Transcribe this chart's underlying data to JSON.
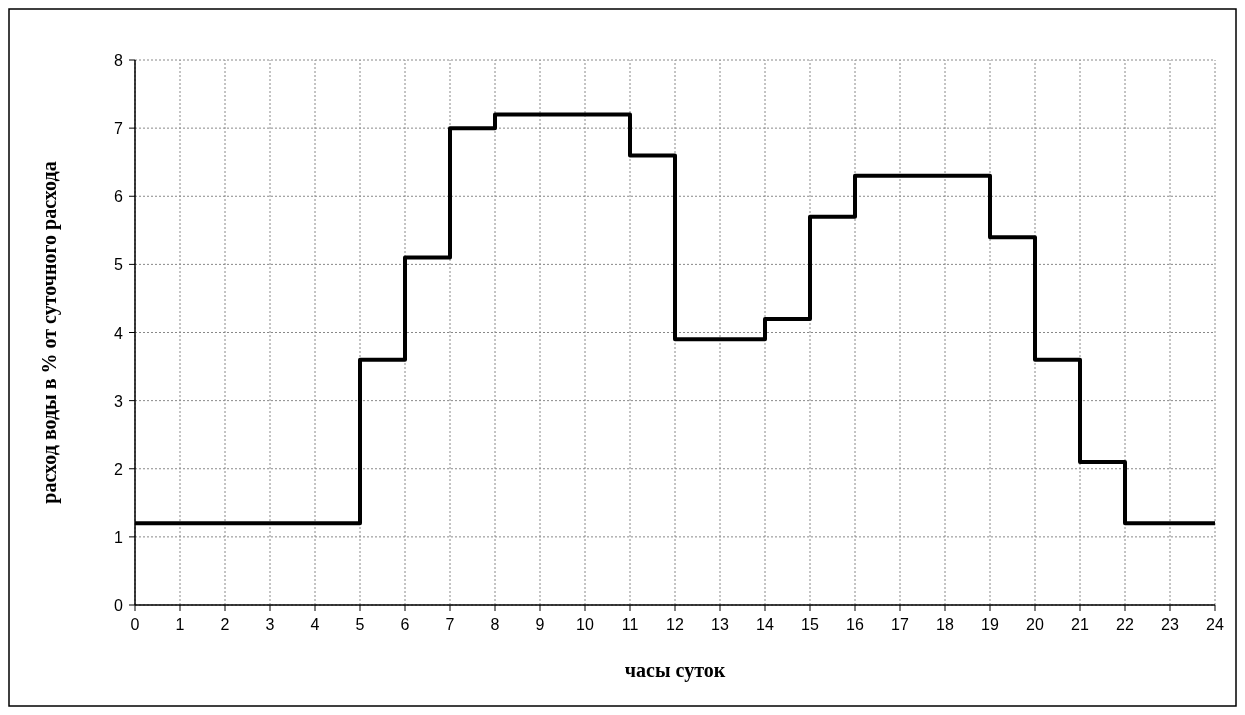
{
  "chart_data": {
    "type": "step",
    "xlabel": "часы суток",
    "ylabel": "расход воды в % от суточного расхода",
    "x": [
      0,
      5,
      6,
      7,
      8,
      11,
      12,
      14,
      15,
      16,
      19,
      20,
      21,
      22,
      24
    ],
    "series": [
      {
        "color": "#000000",
        "values": [
          1.2,
          3.6,
          5.1,
          7.0,
          7.2,
          6.6,
          3.9,
          4.2,
          5.7,
          6.3,
          5.4,
          3.6,
          2.1,
          1.2,
          1.2
        ]
      }
    ],
    "xlim": [
      0,
      24
    ],
    "xticks": [
      0,
      1,
      2,
      3,
      4,
      5,
      6,
      7,
      8,
      9,
      10,
      11,
      12,
      13,
      14,
      15,
      16,
      17,
      18,
      19,
      20,
      21,
      22,
      23,
      24
    ],
    "ylim": [
      0,
      8
    ],
    "yticks": [
      0,
      1,
      2,
      3,
      4,
      5,
      6,
      7,
      8
    ],
    "grid": true,
    "line_style": "solid",
    "marker": "none"
  }
}
